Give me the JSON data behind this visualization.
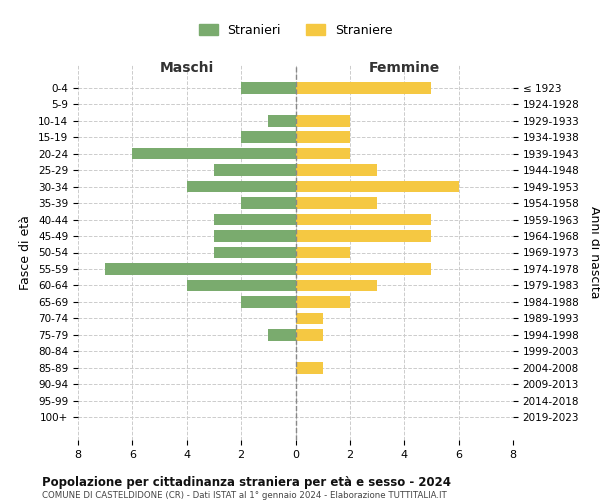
{
  "age_groups": [
    "0-4",
    "5-9",
    "10-14",
    "15-19",
    "20-24",
    "25-29",
    "30-34",
    "35-39",
    "40-44",
    "45-49",
    "50-54",
    "55-59",
    "60-64",
    "65-69",
    "70-74",
    "75-79",
    "80-84",
    "85-89",
    "90-94",
    "95-99",
    "100+"
  ],
  "birth_years": [
    "2019-2023",
    "2014-2018",
    "2009-2013",
    "2004-2008",
    "1999-2003",
    "1994-1998",
    "1989-1993",
    "1984-1988",
    "1979-1983",
    "1974-1978",
    "1969-1973",
    "1964-1968",
    "1959-1963",
    "1954-1958",
    "1949-1953",
    "1944-1948",
    "1939-1943",
    "1934-1938",
    "1929-1933",
    "1924-1928",
    "≤ 1923"
  ],
  "maschi": [
    2,
    0,
    1,
    2,
    6,
    3,
    4,
    2,
    3,
    3,
    3,
    7,
    4,
    2,
    0,
    1,
    0,
    0,
    0,
    0,
    0
  ],
  "femmine": [
    5,
    0,
    2,
    2,
    2,
    3,
    6,
    3,
    5,
    5,
    2,
    5,
    3,
    2,
    1,
    1,
    0,
    1,
    0,
    0,
    0
  ],
  "color_maschi": "#7aab6e",
  "color_femmine": "#f5c842",
  "title": "Popolazione per cittadinanza straniera per età e sesso - 2024",
  "subtitle": "COMUNE DI CASTELDIDONE (CR) - Dati ISTAT al 1° gennaio 2024 - Elaborazione TUTTITALIA.IT",
  "header_left": "Maschi",
  "header_right": "Femmine",
  "ylabel_left": "Fasce di età",
  "ylabel_right": "Anni di nascita",
  "legend_maschi": "Stranieri",
  "legend_femmine": "Straniere",
  "xlim": 8,
  "background_color": "#ffffff",
  "grid_color": "#cccccc"
}
